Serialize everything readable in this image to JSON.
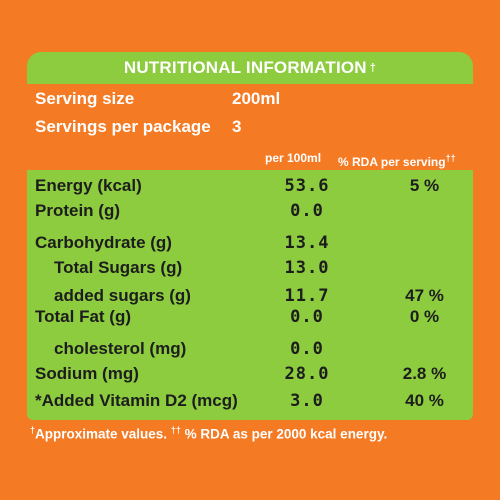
{
  "title": "NUTRITIONAL INFORMATION",
  "title_mark": "†",
  "serving": {
    "size_label": "Serving size",
    "size_value": "200ml",
    "per_package_label": "Servings per package",
    "per_package_value": "3"
  },
  "columns": {
    "per_100ml": "per 100ml",
    "rda": "% RDA per serving",
    "rda_mark": "††"
  },
  "rows": [
    {
      "name": "Energy (kcal)",
      "per": "53.6",
      "rda": "5 %"
    },
    {
      "name": "Protein (g)",
      "per": "0.0",
      "rda": ""
    },
    {
      "name": "Carbohydrate (g)",
      "per": "13.4",
      "rda": ""
    },
    {
      "name": "Total Sugars (g)",
      "per": "13.0",
      "rda": ""
    },
    {
      "name": "added sugars (g)",
      "per": "11.7",
      "rda": "47 %"
    },
    {
      "name": "Total Fat (g)",
      "per": "0.0",
      "rda": "0 %"
    },
    {
      "name": "cholesterol (mg)",
      "per": "0.0",
      "rda": ""
    },
    {
      "name": "Sodium (mg)",
      "per": "28.0",
      "rda": "2.8 %"
    },
    {
      "name": "*Added Vitamin D2 (mcg)",
      "per": "3.0",
      "rda": "40 %"
    }
  ],
  "footnote": {
    "mark1": "†",
    "text1": "Approximate values. ",
    "mark2": "††",
    "text2": " % RDA as per 2000 kcal energy."
  },
  "colors": {
    "orange": "#f47a24",
    "green": "#8ccc3e",
    "text_dark": "#1d1d1d",
    "text_light": "#ffffff"
  }
}
